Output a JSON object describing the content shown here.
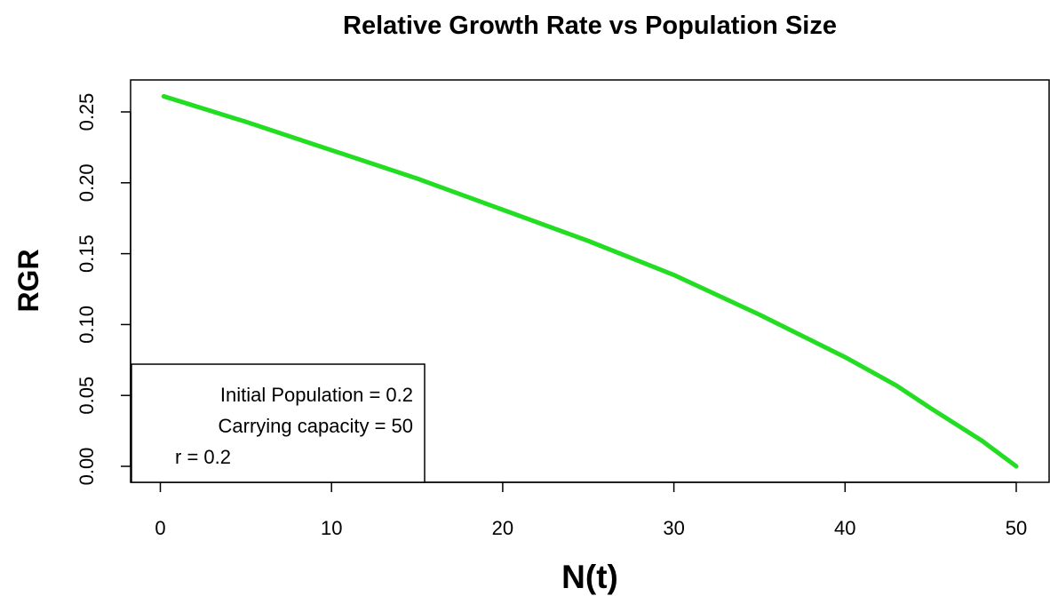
{
  "chart_data": {
    "type": "line",
    "title": "Relative Growth Rate vs Population Size",
    "xlabel": "N(t)",
    "ylabel": "RGR",
    "xlim": [
      0,
      50
    ],
    "ylim": [
      0,
      0.26
    ],
    "x_ticks": [
      "0",
      "10",
      "20",
      "30",
      "40",
      "50"
    ],
    "y_ticks": [
      "0.00",
      "0.05",
      "0.10",
      "0.15",
      "0.20",
      "0.25"
    ],
    "grid": false,
    "legend": {
      "placement": "bottom-left",
      "lines": [
        "Initial Population = 0.2",
        "Carrying capacity = 50",
        "r = 0.2"
      ]
    },
    "series": [
      {
        "color": "#22dd22",
        "x": [
          0.2,
          5,
          10,
          15,
          20,
          25,
          30,
          35,
          40,
          43,
          45,
          48,
          50
        ],
        "y": [
          0.261,
          0.243,
          0.223,
          0.203,
          0.181,
          0.159,
          0.135,
          0.107,
          0.077,
          0.057,
          0.041,
          0.018,
          0.0
        ]
      }
    ]
  }
}
